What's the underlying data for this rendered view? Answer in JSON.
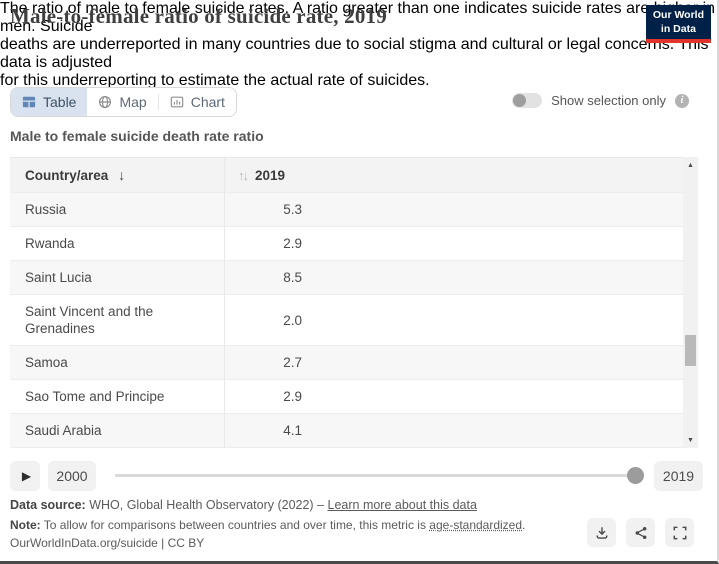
{
  "header": {
    "title": "Male-to-female ratio of suicide rate, 2019",
    "subtitle_lines": [
      "The ratio of male to female suicide rates. A ratio greater than one indicates suicide rates are higher in men. Suicide",
      "deaths are underreported in many countries due to social stigma and cultural or legal concerns. This data is adjusted",
      "for this underreporting to estimate the actual rate of suicides."
    ],
    "logo": {
      "line1": "Our World",
      "line2": "in Data"
    }
  },
  "tabs": [
    {
      "label": "Table",
      "active": true
    },
    {
      "label": "Map",
      "active": false
    },
    {
      "label": "Chart",
      "active": false
    }
  ],
  "selection_toggle": {
    "label": "Show selection only",
    "state": "off"
  },
  "table": {
    "heading": "Male to female suicide death rate ratio",
    "columns": [
      {
        "label": "Country/area",
        "sorted": "asc"
      },
      {
        "label": "2019",
        "sorted": "none"
      }
    ],
    "rows": [
      {
        "country": "Russia",
        "value": "5.3"
      },
      {
        "country": "Rwanda",
        "value": "2.9"
      },
      {
        "country": "Saint Lucia",
        "value": "8.5"
      },
      {
        "country": "Saint Vincent and the Grenadines",
        "value": "2.0"
      },
      {
        "country": "Samoa",
        "value": "2.7"
      },
      {
        "country": "Sao Tome and Principe",
        "value": "2.9"
      },
      {
        "country": "Saudi Arabia",
        "value": "4.1"
      }
    ]
  },
  "timeline": {
    "start_year": "2000",
    "end_year": "2019",
    "selected_year": "2019"
  },
  "footer": {
    "source_label": "Data source:",
    "source_text": " WHO, Global Health Observatory (2022) – ",
    "source_link": "Learn more about this data",
    "note_label": "Note:",
    "note_before": " To allow for comparisons between countries and over time, this metric is ",
    "note_link": "age-standardized",
    "note_after": ".",
    "citation": "OurWorldInData.org/suicide | CC BY"
  },
  "colors": {
    "active_tab_bg": "#d9e3ef",
    "logo_navy": "#002147",
    "logo_red": "#e0342c",
    "row_stripe": "#f7f7f7",
    "table_icon_blue": "#6186b8"
  }
}
